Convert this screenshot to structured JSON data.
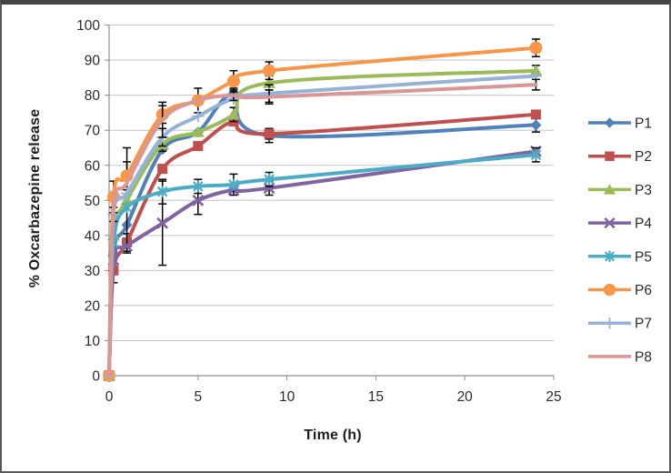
{
  "window": {
    "background": "#ffffff",
    "border_color": "#5a5a5c"
  },
  "chart_data": {
    "type": "line",
    "title": "",
    "xlabel": "Time (h)",
    "ylabel": "% Oxcarbazepine release",
    "x": [
      0,
      0.25,
      1,
      3,
      5,
      7,
      9,
      24
    ],
    "xlim": [
      0,
      25
    ],
    "ylim": [
      0,
      100
    ],
    "x_ticks": [
      0,
      5,
      10,
      15,
      20,
      25
    ],
    "y_ticks": [
      0,
      10,
      20,
      30,
      40,
      50,
      60,
      70,
      80,
      90,
      100
    ],
    "grid": "horizontal",
    "smoothed_lines": true,
    "legend_position": "right",
    "error_bar_color": "#000000",
    "grid_color": "#c3c3c3",
    "axis_color": "#8c8c8c",
    "tick_label_color": "#2b2b2b",
    "series": [
      {
        "name": "P1",
        "color": "#4F81BD",
        "marker": "diamond",
        "values": [
          0,
          35,
          43,
          64.5,
          69.5,
          80.5,
          68.5,
          71.5
        ],
        "errors": [
          0,
          0,
          0,
          0,
          0,
          1.5,
          2,
          2
        ]
      },
      {
        "name": "P2",
        "color": "#C0504D",
        "marker": "square",
        "values": [
          0,
          30,
          38,
          59,
          65.5,
          72.5,
          69,
          74.5
        ],
        "errors": [
          0,
          3.5,
          2.5,
          0,
          0,
          0,
          1.5,
          0
        ]
      },
      {
        "name": "P3",
        "color": "#9BBB59",
        "marker": "triangle",
        "values": [
          0,
          40,
          50,
          66,
          69.5,
          74.5,
          83.5,
          87
        ],
        "errors": [
          0,
          0,
          15,
          2,
          0,
          2,
          2,
          1.5
        ]
      },
      {
        "name": "P4",
        "color": "#8064A2",
        "marker": "x",
        "values": [
          0,
          33,
          37,
          43.5,
          50,
          53,
          53.5,
          64
        ],
        "errors": [
          0,
          0,
          0,
          12,
          4,
          0,
          2,
          0
        ]
      },
      {
        "name": "P5",
        "color": "#4BACC6",
        "marker": "star",
        "values": [
          0,
          38,
          48,
          52.5,
          54,
          54.5,
          56,
          63
        ],
        "errors": [
          0,
          0,
          0,
          3.5,
          2,
          3,
          2,
          2
        ]
      },
      {
        "name": "P6",
        "color": "#F79646",
        "marker": "circle",
        "values": [
          0,
          51,
          57,
          74.5,
          78.5,
          84,
          87,
          93.5
        ],
        "errors": [
          0,
          4.5,
          4,
          2.5,
          3.5,
          3,
          2.5,
          2.5
        ]
      },
      {
        "name": "P7",
        "color": "#95B3D7",
        "marker": "plus",
        "values": [
          0,
          46,
          52,
          68,
          74,
          79,
          80.5,
          85.5
        ],
        "errors": [
          0,
          2,
          0,
          2.5,
          0,
          0,
          2.5,
          0
        ]
      },
      {
        "name": "P8",
        "color": "#D99694",
        "marker": "none",
        "values": [
          0,
          48,
          55,
          73,
          78.5,
          80,
          79.5,
          83
        ],
        "errors": [
          0,
          0,
          0,
          5,
          0,
          1.5,
          2,
          1.5
        ]
      }
    ]
  }
}
